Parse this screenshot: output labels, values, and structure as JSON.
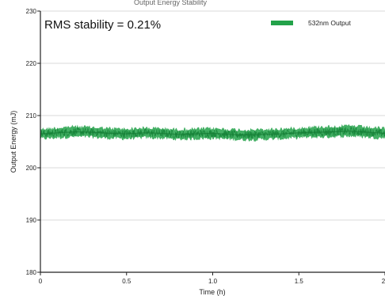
{
  "chart_data": {
    "type": "line",
    "title_fragment": "Output Energy Stability",
    "annotation": "RMS stability = 0.21%",
    "xlabel": "Time (h)",
    "ylabel": "Output Energy (mJ)",
    "xlim": [
      0,
      2
    ],
    "ylim": [
      180,
      230
    ],
    "x_ticks": [
      0,
      0.5,
      1.0,
      1.5,
      2
    ],
    "x_tick_labels": [
      "0",
      "0.5",
      "1.0",
      "1.5",
      "2"
    ],
    "y_ticks": [
      180,
      190,
      200,
      210,
      220,
      230
    ],
    "y_tick_labels": [
      "180",
      "190",
      "200",
      "210",
      "220",
      "230"
    ],
    "grid": "horizontal",
    "legend_position": "top-right",
    "series": [
      {
        "name": "532nm Output",
        "color": "#23a24a",
        "x": [
          0,
          0.1,
          0.2,
          0.3,
          0.4,
          0.5,
          0.6,
          0.7,
          0.8,
          0.9,
          1.0,
          1.1,
          1.2,
          1.3,
          1.4,
          1.5,
          1.6,
          1.7,
          1.8,
          1.9,
          2.0
        ],
        "mean": [
          206.5,
          206.7,
          206.9,
          206.8,
          206.6,
          206.5,
          206.7,
          206.6,
          206.4,
          206.5,
          206.6,
          206.4,
          206.3,
          206.4,
          206.5,
          206.7,
          206.8,
          206.9,
          207.0,
          206.8,
          206.6
        ],
        "min": [
          205.2,
          205.4,
          205.6,
          205.5,
          205.3,
          205.2,
          205.4,
          205.3,
          205.1,
          205.2,
          205.3,
          205.1,
          205.0,
          205.1,
          205.2,
          205.4,
          205.5,
          205.6,
          205.7,
          205.5,
          205.3
        ],
        "max": [
          207.8,
          208.0,
          208.3,
          208.1,
          207.9,
          207.8,
          208.0,
          207.9,
          207.7,
          207.8,
          207.9,
          207.7,
          207.6,
          207.7,
          207.8,
          208.0,
          208.2,
          208.3,
          208.4,
          208.1,
          207.9
        ]
      }
    ]
  }
}
